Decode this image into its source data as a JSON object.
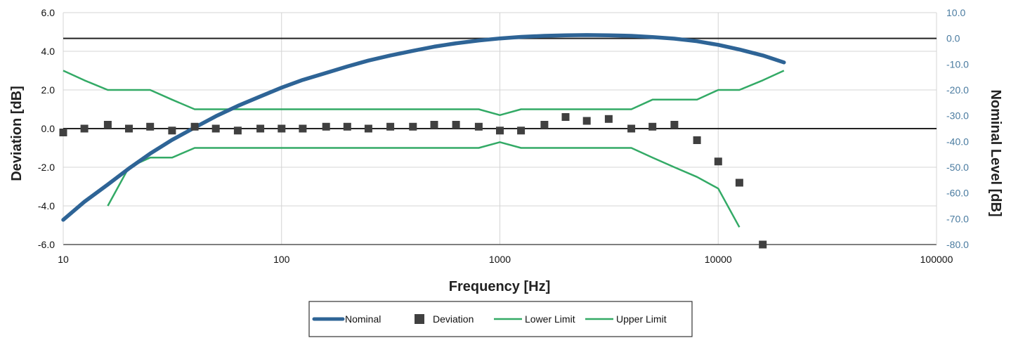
{
  "chart_data": {
    "type": "line",
    "title": "",
    "xlabel": "Frequency [Hz]",
    "ylabel_left": "Deviation [dB]",
    "ylabel_right": "Nominal Level [dB]",
    "x_scale": "log",
    "xlim": [
      10,
      100000
    ],
    "x_ticks": [
      "10",
      "100",
      "1000",
      "10000",
      "100000"
    ],
    "ylim_left": [
      -6,
      6
    ],
    "y_ticks_left": [
      "6.0",
      "4.0",
      "2.0",
      "0.0",
      "-2.0",
      "-4.0",
      "-6.0"
    ],
    "ylim_right": [
      -80,
      10
    ],
    "y_ticks_right": [
      "10.0",
      "0.0",
      "-10.0",
      "-20.0",
      "-30.0",
      "-40.0",
      "-50.0",
      "-60.0",
      "-70.0",
      "-80.0"
    ],
    "grid": true,
    "legend_position": "bottom",
    "colors": {
      "nominal": "#2e6496",
      "deviation": "#404040",
      "limits": "#33aa66",
      "reference": "#222222",
      "right_axis": "#4a7ba0"
    },
    "reference_lines": [
      {
        "axis": "right",
        "y": 0
      },
      {
        "axis": "left",
        "y": 0
      }
    ],
    "series": [
      {
        "name": "Nominal",
        "axis": "right",
        "style": "line",
        "x": [
          10,
          12.5,
          16,
          20,
          25,
          31.5,
          40,
          50,
          63,
          80,
          100,
          125,
          160,
          200,
          250,
          315,
          400,
          500,
          630,
          800,
          1000,
          1250,
          1600,
          2000,
          2500,
          3150,
          4000,
          5000,
          6300,
          8000,
          10000,
          12500,
          16000,
          20000
        ],
        "y": [
          -70.4,
          -63.4,
          -56.7,
          -50.5,
          -44.7,
          -39.4,
          -34.6,
          -30.2,
          -26.2,
          -22.5,
          -19.1,
          -16.1,
          -13.4,
          -10.9,
          -8.6,
          -6.6,
          -4.8,
          -3.2,
          -1.9,
          -0.8,
          0.0,
          0.6,
          1.0,
          1.2,
          1.3,
          1.2,
          1.0,
          0.5,
          -0.1,
          -1.1,
          -2.5,
          -4.3,
          -6.6,
          -9.3
        ]
      },
      {
        "name": "Deviation",
        "axis": "left",
        "style": "marker",
        "x": [
          10,
          12.5,
          16,
          20,
          25,
          31.5,
          40,
          50,
          63,
          80,
          100,
          125,
          160,
          200,
          250,
          315,
          400,
          500,
          630,
          800,
          1000,
          1250,
          1600,
          2000,
          2500,
          3150,
          4000,
          5000,
          6300,
          8000,
          10000,
          12500,
          16000
        ],
        "y": [
          -0.2,
          0.0,
          0.2,
          0.0,
          0.1,
          -0.1,
          0.1,
          0.0,
          -0.1,
          0.0,
          0.0,
          0.0,
          0.1,
          0.1,
          0.0,
          0.1,
          0.1,
          0.2,
          0.2,
          0.1,
          -0.1,
          -0.1,
          0.2,
          0.6,
          0.4,
          0.5,
          0.0,
          0.1,
          0.2,
          -0.6,
          -1.7,
          -2.8,
          -6.0
        ]
      },
      {
        "name": "Lower Limit",
        "axis": "left",
        "style": "line",
        "x": [
          16,
          20,
          25,
          31.5,
          40,
          50,
          63,
          80,
          100,
          125,
          160,
          200,
          250,
          315,
          400,
          500,
          630,
          800,
          1000,
          1250,
          1600,
          2000,
          2500,
          3150,
          4000,
          5000,
          6300,
          8000,
          10000,
          12500
        ],
        "y": [
          -4.0,
          -2.0,
          -1.5,
          -1.5,
          -1.0,
          -1.0,
          -1.0,
          -1.0,
          -1.0,
          -1.0,
          -1.0,
          -1.0,
          -1.0,
          -1.0,
          -1.0,
          -1.0,
          -1.0,
          -1.0,
          -0.7,
          -1.0,
          -1.0,
          -1.0,
          -1.0,
          -1.0,
          -1.0,
          -1.5,
          -2.0,
          -2.5,
          -3.1,
          -5.1
        ]
      },
      {
        "name": "Upper Limit",
        "axis": "left",
        "style": "line",
        "x": [
          10,
          12.5,
          16,
          20,
          25,
          31.5,
          40,
          50,
          63,
          80,
          100,
          125,
          160,
          200,
          250,
          315,
          400,
          500,
          630,
          800,
          1000,
          1250,
          1600,
          2000,
          2500,
          3150,
          4000,
          5000,
          6300,
          8000,
          10000,
          12500,
          16000,
          20000
        ],
        "y": [
          3.0,
          2.5,
          2.0,
          2.0,
          2.0,
          1.5,
          1.0,
          1.0,
          1.0,
          1.0,
          1.0,
          1.0,
          1.0,
          1.0,
          1.0,
          1.0,
          1.0,
          1.0,
          1.0,
          1.0,
          0.7,
          1.0,
          1.0,
          1.0,
          1.0,
          1.0,
          1.0,
          1.5,
          1.5,
          1.5,
          2.0,
          2.0,
          2.5,
          3.0
        ]
      }
    ]
  }
}
